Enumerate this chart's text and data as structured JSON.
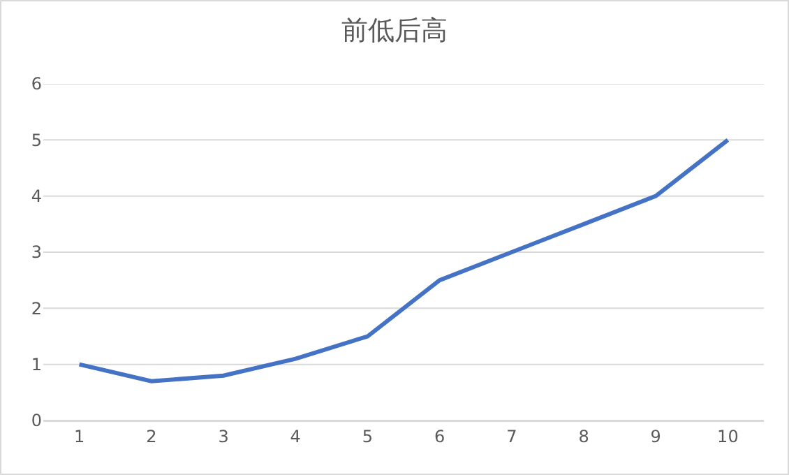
{
  "chart_data": {
    "type": "line",
    "title": "前低后高",
    "categories": [
      "1",
      "2",
      "3",
      "4",
      "5",
      "6",
      "7",
      "8",
      "9",
      "10"
    ],
    "series": [
      {
        "color": "#4472c4",
        "values": [
          1,
          0.7,
          0.8,
          1.1,
          1.5,
          2.5,
          3.0,
          3.5,
          4.0,
          5.0
        ]
      }
    ],
    "ylim": [
      0,
      6
    ],
    "yticks": [
      0,
      1,
      2,
      3,
      4,
      5,
      6
    ],
    "grid": "y",
    "marker": "none",
    "line_style": "solid"
  }
}
